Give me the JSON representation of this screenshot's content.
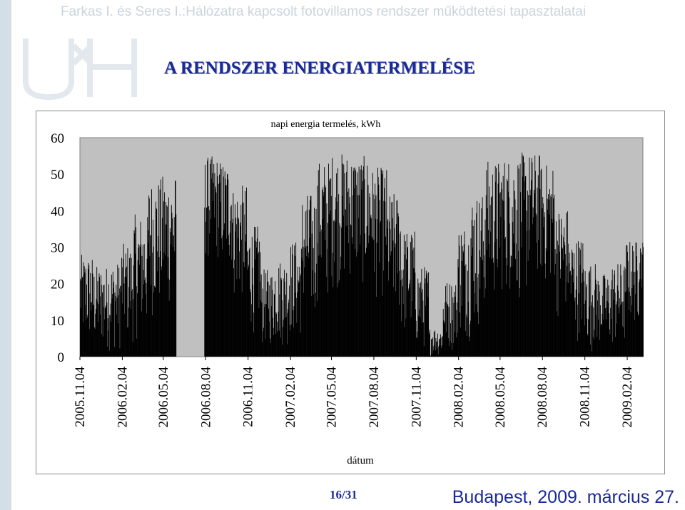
{
  "header": {
    "title": "Farkas I. és Seres I.:Hálózatra kapcsolt fotovillamos rendszer működtetési tapasztalatai"
  },
  "slide": {
    "title": "A RENDSZER ENERGIATERMELÉSE"
  },
  "footer": {
    "page": "16/31",
    "place_date": "Budapest, 2009. március 27."
  },
  "colors": {
    "accent": "#1a2a99",
    "plot_bg": "#c0c0c0",
    "bars": "#000000",
    "header_text": "#c9d4dc"
  },
  "logo": {
    "icon": "university-logo-watermark"
  },
  "chart_data": {
    "type": "bar",
    "title": "napi energia termelés, kWh",
    "xlabel": "dátum",
    "ylabel": "",
    "ylim": [
      0,
      60
    ],
    "yticks": [
      "0",
      "10",
      "20",
      "30",
      "40",
      "50",
      "60"
    ],
    "grid": false,
    "legend": "none",
    "x_ticks": [
      "2005.11.04",
      "2006.02.04",
      "2006.05.04",
      "2006.08.04",
      "2006.11.04",
      "2007.02.04",
      "2007.05.04",
      "2007.08.04",
      "2007.11.04",
      "2008.02.04",
      "2008.05.04",
      "2008.08.04",
      "2008.11.04",
      "2009.02.04"
    ],
    "x_start": "2005.11.04",
    "x_end": "2009.03.10",
    "series": [
      {
        "values_by_month": [
          {
            "month": "2005.11",
            "peak": 28,
            "low": 2
          },
          {
            "month": "2005.12",
            "peak": 25,
            "low": 1
          },
          {
            "month": "2006.01",
            "peak": 26,
            "low": 1
          },
          {
            "month": "2006.02",
            "peak": 31,
            "low": 3
          },
          {
            "month": "2006.03",
            "peak": 39,
            "low": 4
          },
          {
            "month": "2006.04",
            "peak": 49,
            "low": 10
          },
          {
            "month": "2006.05",
            "peak": 50,
            "low": 12
          },
          {
            "month": "2006.06",
            "peak": 0,
            "low": 0
          },
          {
            "month": "2006.07",
            "peak": 0,
            "low": 0
          },
          {
            "month": "2006.08",
            "peak": 55,
            "low": 25
          },
          {
            "month": "2006.09",
            "peak": 54,
            "low": 22
          },
          {
            "month": "2006.10",
            "peak": 47,
            "low": 14
          },
          {
            "month": "2006.11",
            "peak": 36,
            "low": 6
          },
          {
            "month": "2006.12",
            "peak": 24,
            "low": 2
          },
          {
            "month": "2007.01",
            "peak": 27,
            "low": 2
          },
          {
            "month": "2007.02",
            "peak": 32,
            "low": 4
          },
          {
            "month": "2007.03",
            "peak": 45,
            "low": 8
          },
          {
            "month": "2007.04",
            "peak": 54,
            "low": 14
          },
          {
            "month": "2007.05",
            "peak": 56,
            "low": 18
          },
          {
            "month": "2007.06",
            "peak": 56,
            "low": 20
          },
          {
            "month": "2007.07",
            "peak": 55,
            "low": 18
          },
          {
            "month": "2007.08",
            "peak": 52,
            "low": 15
          },
          {
            "month": "2007.09",
            "peak": 45,
            "low": 9
          },
          {
            "month": "2007.10",
            "peak": 35,
            "low": 4
          },
          {
            "month": "2007.11",
            "peak": 25,
            "low": 1
          },
          {
            "month": "2007.12",
            "peak": 8,
            "low": 0
          },
          {
            "month": "2008.01",
            "peak": 21,
            "low": 1
          },
          {
            "month": "2008.02",
            "peak": 37,
            "low": 4
          },
          {
            "month": "2008.03",
            "peak": 45,
            "low": 6
          },
          {
            "month": "2008.04",
            "peak": 54,
            "low": 14
          },
          {
            "month": "2008.05",
            "peak": 55,
            "low": 16
          },
          {
            "month": "2008.06",
            "peak": 56,
            "low": 14
          },
          {
            "month": "2008.07",
            "peak": 56,
            "low": 20
          },
          {
            "month": "2008.08",
            "peak": 53,
            "low": 18
          },
          {
            "month": "2008.09",
            "peak": 41,
            "low": 10
          },
          {
            "month": "2008.10",
            "peak": 33,
            "low": 4
          },
          {
            "month": "2008.11",
            "peak": 26,
            "low": 1
          },
          {
            "month": "2008.12",
            "peak": 23,
            "low": 1
          },
          {
            "month": "2009.01",
            "peak": 26,
            "low": 1
          },
          {
            "month": "2009.02",
            "peak": 32,
            "low": 8
          },
          {
            "month": "2009.03",
            "peak": 32,
            "low": 18
          }
        ]
      }
    ]
  }
}
